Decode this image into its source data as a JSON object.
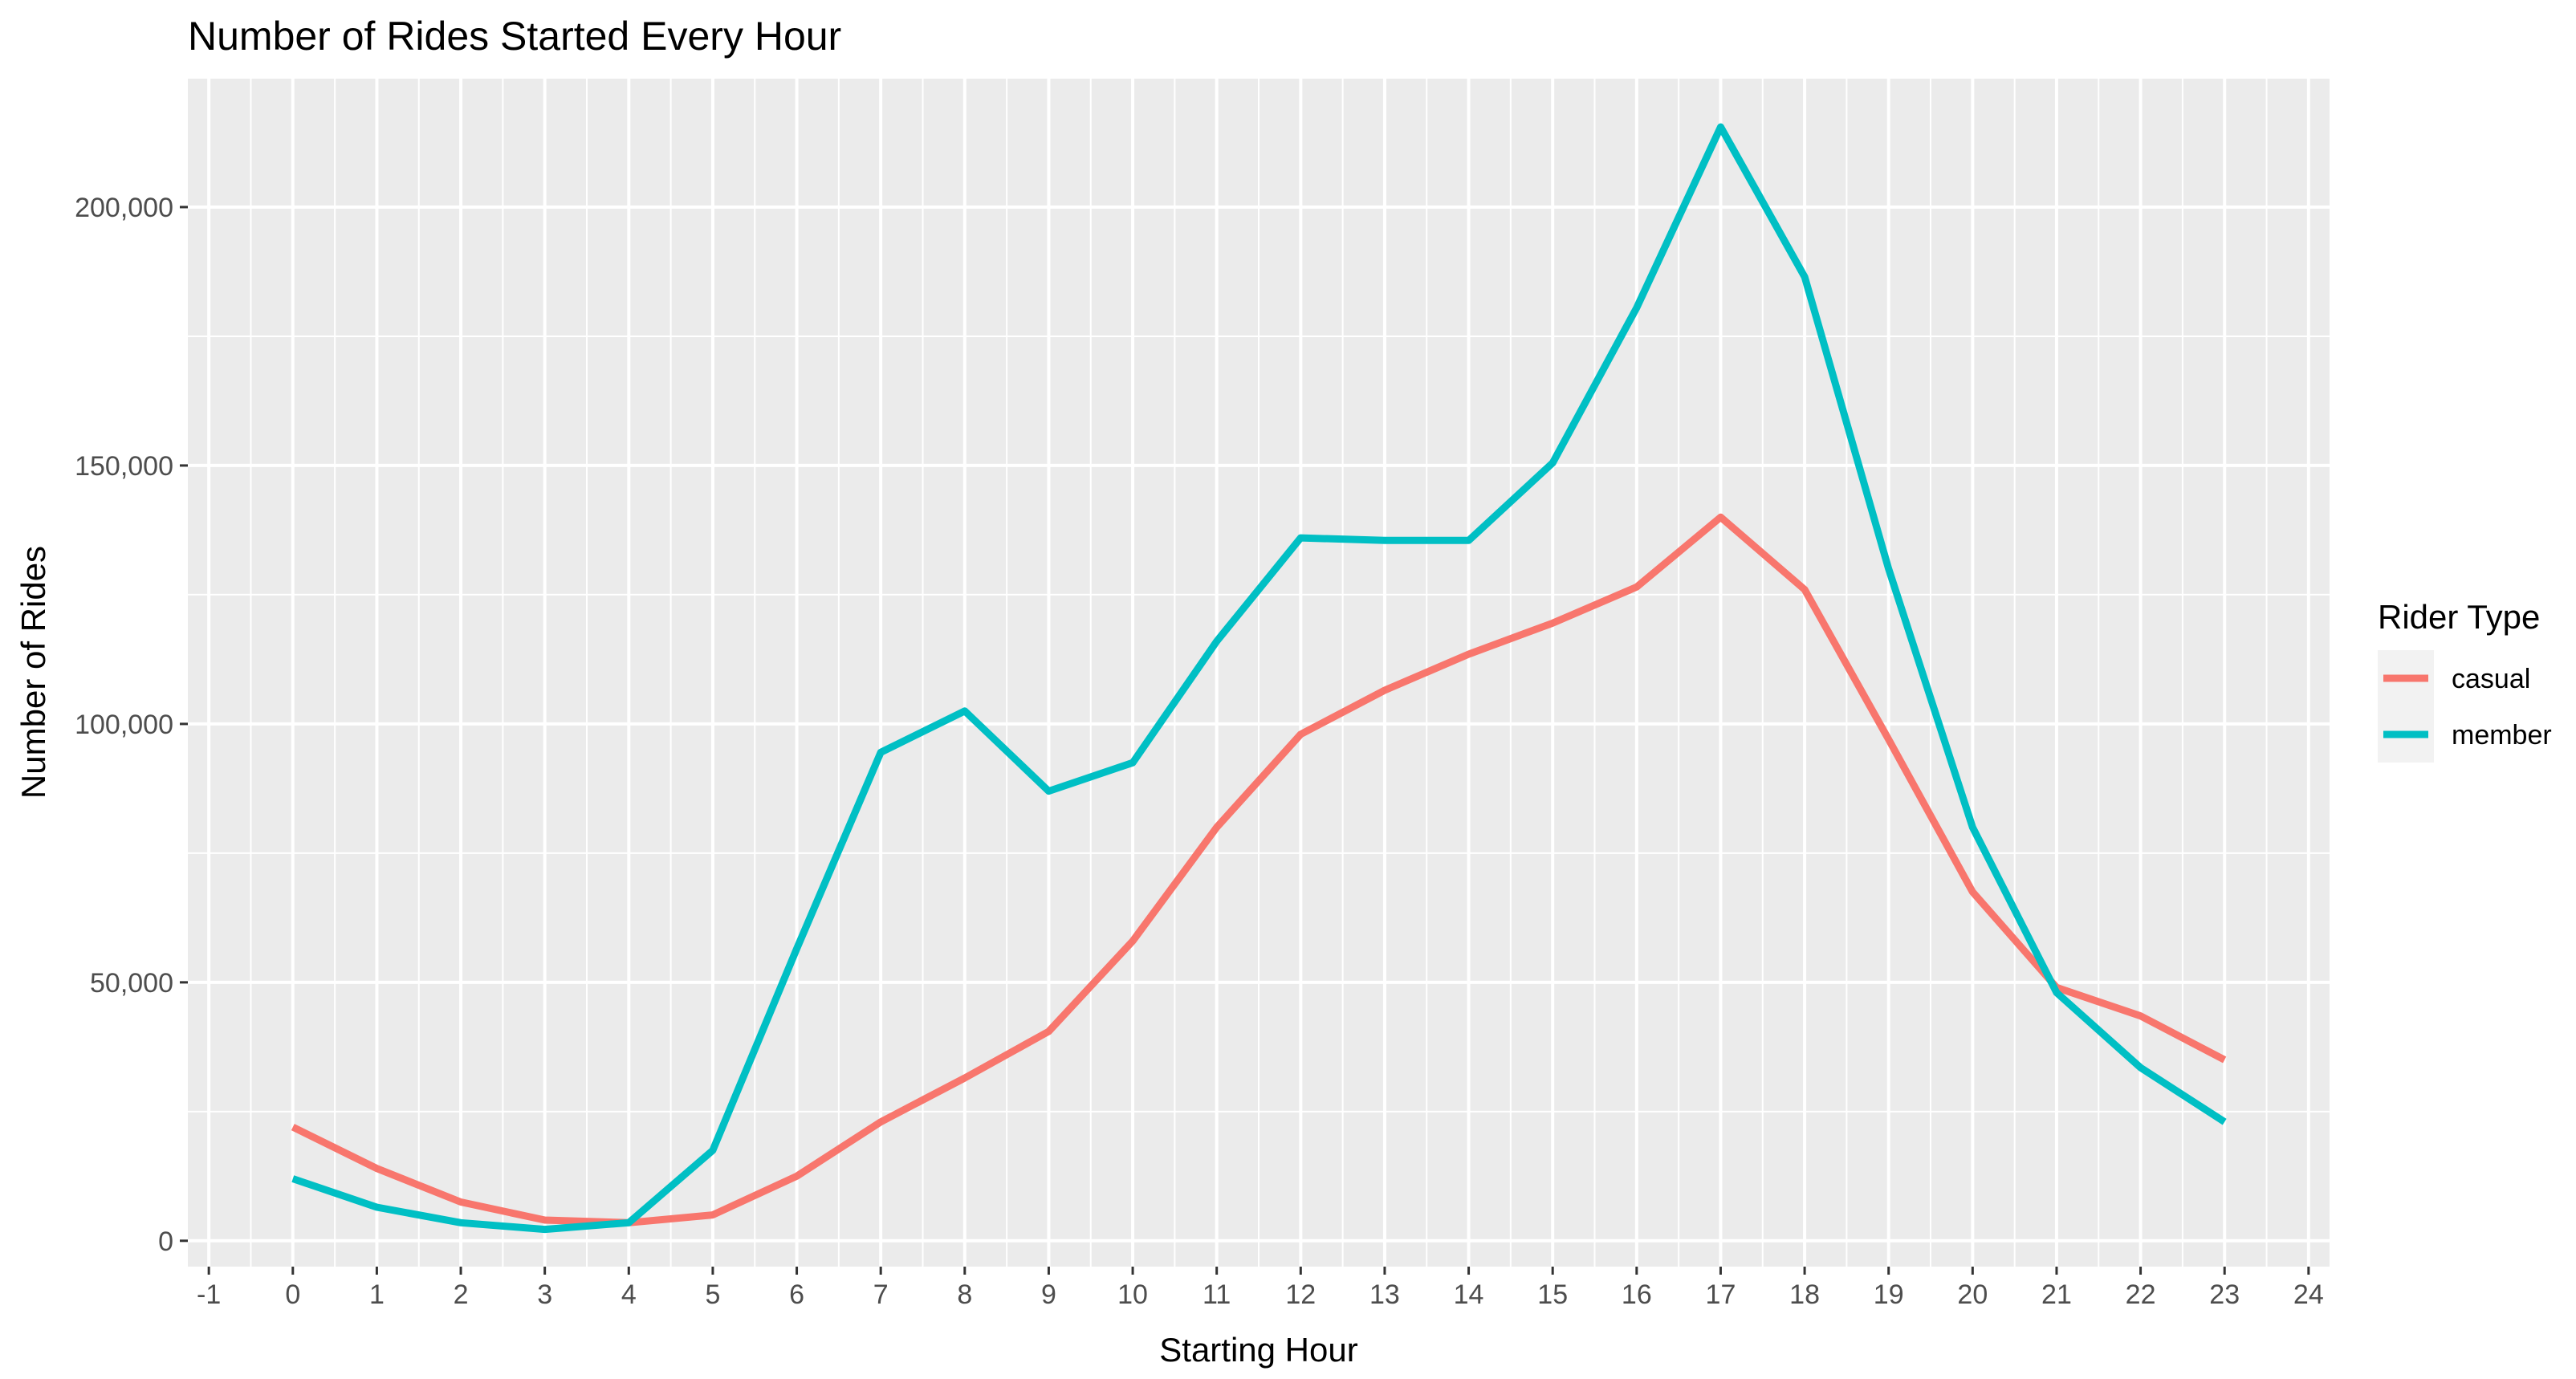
{
  "chart_data": {
    "type": "line",
    "title": "Number of Rides Started Every Hour",
    "xlabel": "Starting Hour",
    "ylabel": "Number of Rides",
    "x": [
      0,
      1,
      2,
      3,
      4,
      5,
      6,
      7,
      8,
      9,
      10,
      11,
      12,
      13,
      14,
      15,
      16,
      17,
      18,
      19,
      20,
      21,
      22,
      23
    ],
    "xticks": [
      -1,
      0,
      1,
      2,
      3,
      4,
      5,
      6,
      7,
      8,
      9,
      10,
      11,
      12,
      13,
      14,
      15,
      16,
      17,
      18,
      19,
      20,
      21,
      22,
      23,
      24
    ],
    "xlim": [
      -1.25,
      24.25
    ],
    "yticks": [
      0,
      50000,
      100000,
      150000,
      200000
    ],
    "ytick_labels": [
      "0",
      "50,000",
      "100,000",
      "150,000",
      "200,000"
    ],
    "ylim": [
      -5000,
      225000
    ],
    "grid": true,
    "legend": {
      "title": "Rider Type",
      "placement": "right"
    },
    "series": [
      {
        "name": "casual",
        "color": "#F8766D",
        "values": [
          22000,
          14000,
          7500,
          4000,
          3500,
          5000,
          12500,
          23000,
          31500,
          40500,
          58000,
          80000,
          98000,
          106500,
          113500,
          119500,
          126500,
          140000,
          126000,
          97000,
          67500,
          49000,
          43500,
          35000
        ]
      },
      {
        "name": "member",
        "color": "#00BFC4",
        "values": [
          12000,
          6500,
          3500,
          2200,
          3500,
          17500,
          56500,
          94500,
          102500,
          87000,
          92500,
          116000,
          136000,
          135500,
          135500,
          150500,
          180500,
          215500,
          186500,
          130000,
          80000,
          48000,
          33500,
          23000
        ]
      }
    ]
  }
}
